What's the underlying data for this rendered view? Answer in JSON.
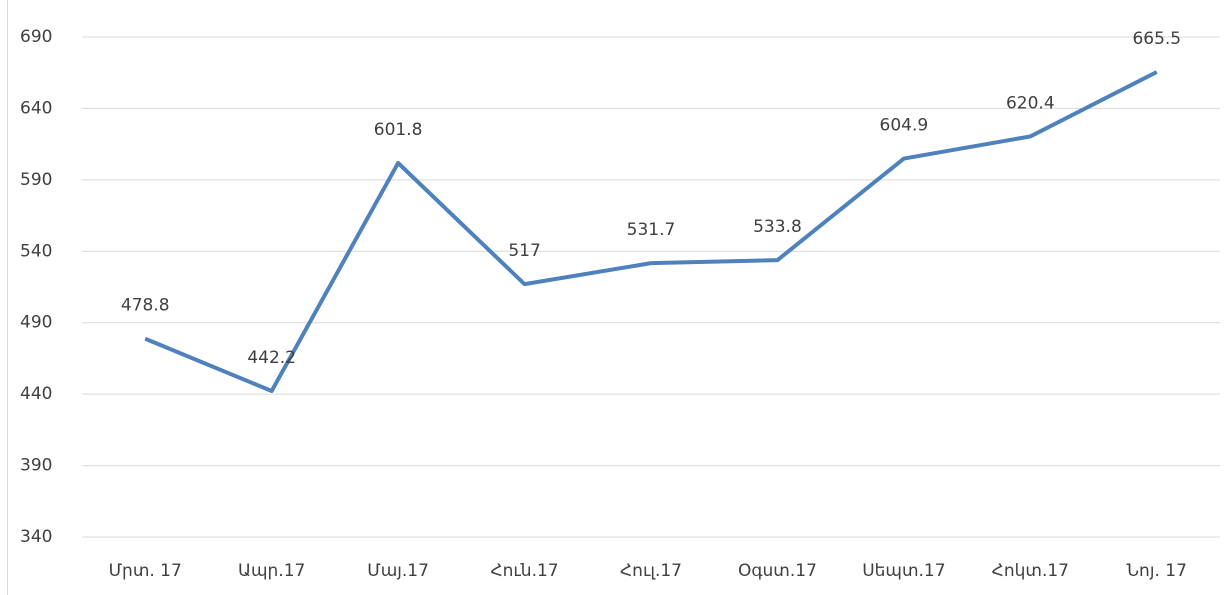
{
  "chart_data": {
    "type": "line",
    "categories": [
      "Մրտ. 17",
      "Ապր.17",
      "Մայ.17",
      "Հուն.17",
      "Հուլ.17",
      "Օգստ.17",
      "Սեպտ.17",
      "Հոկտ.17",
      "Նոյ. 17"
    ],
    "series": [
      {
        "color": "#4f81bd",
        "values": [
          478.8,
          442.2,
          601.8,
          517,
          531.7,
          533.8,
          604.9,
          620.4,
          665.5
        ]
      }
    ],
    "ylim": [
      340,
      690
    ],
    "yticks": [
      340,
      390,
      440,
      490,
      540,
      590,
      640,
      690
    ],
    "grid": true
  }
}
